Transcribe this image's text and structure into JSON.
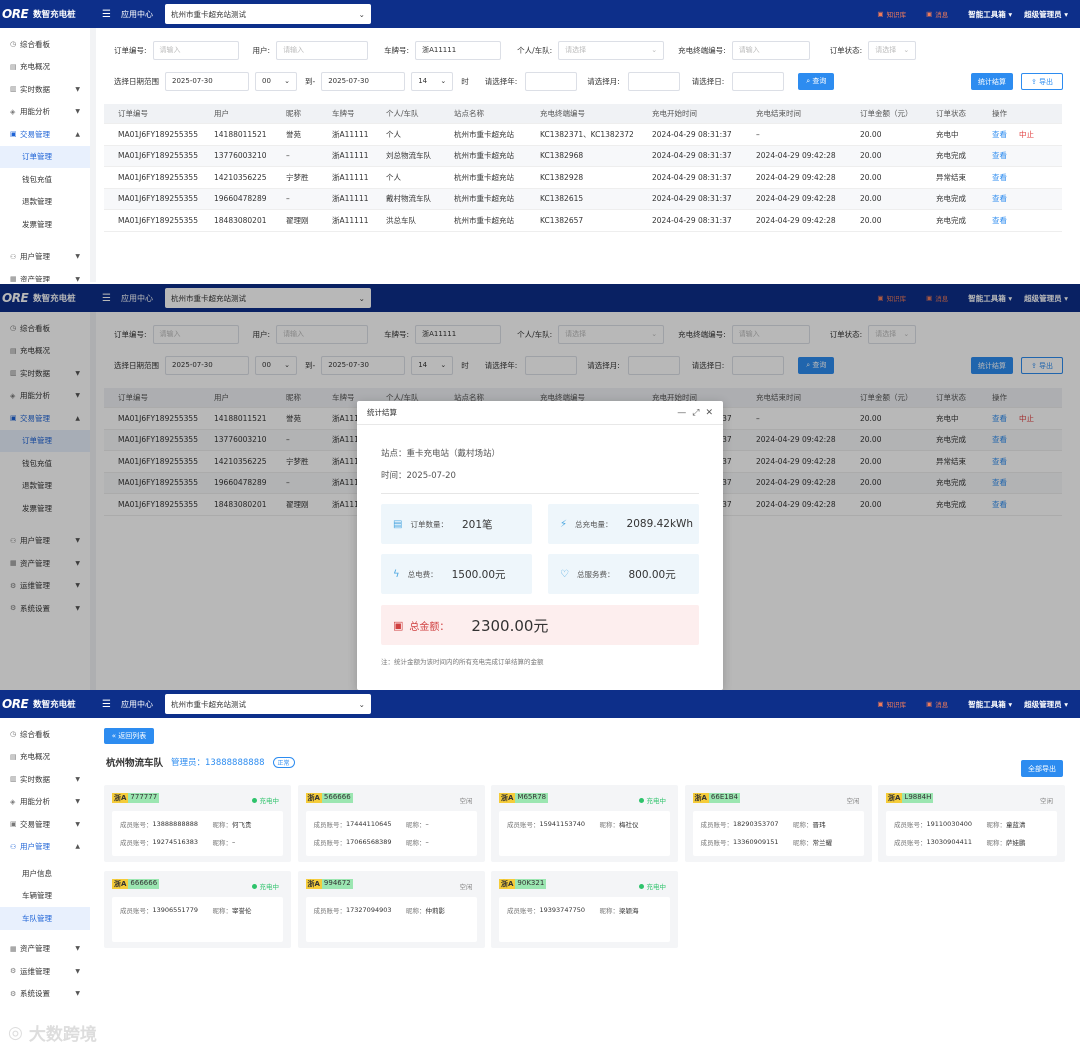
{
  "app": {
    "logo_mark": "ORE",
    "logo_name": "数智充电桩",
    "menu_icon": "hamburger-icon",
    "app_center": "应用中心",
    "station_select": "杭州市重卡超充站测试",
    "knowledge": "知识库",
    "message": "消息",
    "tools": "智能工具箱",
    "admin": "超级管理员"
  },
  "sidebar_common": [
    {
      "label": "综合看板",
      "icon": "dashboard-icon"
    },
    {
      "label": "充电概况",
      "icon": "charge-icon"
    },
    {
      "label": "实时数据",
      "icon": "data-icon"
    },
    {
      "label": "用能分析",
      "icon": "analysis-icon"
    }
  ],
  "s1": {
    "sidebar": {
      "trade": "交易管理",
      "subs": [
        "订单管理",
        "钱包充值",
        "退款管理",
        "发票管理"
      ],
      "user": "用户管理",
      "asset": "资产管理"
    }
  },
  "s2": {
    "sidebar": {
      "trade": "交易管理",
      "subs": [
        "订单管理",
        "钱包充值",
        "退款管理",
        "发票管理"
      ],
      "others": [
        "用户管理",
        "资产管理",
        "运维管理",
        "系统设置"
      ]
    }
  },
  "filters": {
    "order_no_label": "订单编号:",
    "order_no_ph": "请输入",
    "user_label": "用户:",
    "user_ph": "请输入",
    "plate_label": "车牌号:",
    "plate_value": "浙A11111",
    "team_label": "个人/车队:",
    "team_ph": "请选择",
    "terminal_label": "充电终端编号:",
    "terminal_ph": "请输入",
    "status_label": "订单状态:",
    "status_ph": "请选择",
    "date_label": "选择日期范围",
    "date_from": "2025-07-30",
    "hour_from": "00",
    "to_label": "到-",
    "date_to": "2025-07-30",
    "hour_to": "14",
    "hour_unit": "时",
    "year_label": "请选择年:",
    "month_label": "请选择月:",
    "day_label": "请选择日:",
    "query_btn": "查询",
    "stat_btn": "统计结算",
    "export_btn": "导出"
  },
  "table": {
    "headers": [
      "订单编号",
      "用户",
      "昵称",
      "车牌号",
      "个人/车队",
      "站点名称",
      "充电终端编号",
      "充电开始时间",
      "充电结束时间",
      "订单金额（元）",
      "订单状态",
      "操作"
    ],
    "rows": [
      [
        "MA01J6FY189255355",
        "14188011521",
        "誉苑",
        "浙A11111",
        "个人",
        "杭州市重卡超充站",
        "KC1382371、KC1382372",
        "2024-04-29 08:31:37",
        "–",
        "20.00",
        "充电中",
        "查看",
        "中止"
      ],
      [
        "MA01J6FY189255355",
        "13776003210",
        "–",
        "浙A11111",
        "刘总物流车队",
        "杭州市重卡超充站",
        "KC1382968",
        "2024-04-29 08:31:37",
        "2024-04-29 09:42:28",
        "20.00",
        "充电完成",
        "查看",
        ""
      ],
      [
        "MA01J6FY189255355",
        "14210356225",
        "宁梦胜",
        "浙A11111",
        "个人",
        "杭州市重卡超充站",
        "KC1382928",
        "2024-04-29 08:31:37",
        "2024-04-29 09:42:28",
        "20.00",
        "异常结束",
        "查看",
        ""
      ],
      [
        "MA01J6FY189255355",
        "19660478289",
        "–",
        "浙A11111",
        "戴村物流车队",
        "杭州市重卡超充站",
        "KC1382615",
        "2024-04-29 08:31:37",
        "2024-04-29 09:42:28",
        "20.00",
        "充电完成",
        "查看",
        ""
      ],
      [
        "MA01J6FY189255355",
        "18483080201",
        "翟理刚",
        "浙A11111",
        "洪总车队",
        "杭州市重卡超充站",
        "KC1382657",
        "2024-04-29 08:31:37",
        "2024-04-29 09:42:28",
        "20.00",
        "充电完成",
        "查看",
        ""
      ]
    ]
  },
  "modal": {
    "title": "统计结算",
    "station": "站点：重卡充电站（戴村场站）",
    "time": "时间：2025-07-20",
    "order_count_label": "订单数量：",
    "order_count": "201笔",
    "energy_label": "总充电量：",
    "energy": "2089.42kWh",
    "elec_fee_label": "总电费：",
    "elec_fee": "1500.00元",
    "service_fee_label": "总服务费：",
    "service_fee": "800.00元",
    "total_label": "总金额：",
    "total": "2300.00元",
    "note": "注：统计金额为该时间内的所有充电完成订单结算的金额"
  },
  "s3": {
    "sidebar": {
      "trade": "交易管理",
      "user": "用户管理",
      "subs": [
        "用户信息",
        "车辆管理",
        "车队管理"
      ],
      "others": [
        "资产管理",
        "运维管理",
        "系统设置"
      ]
    },
    "back_btn": "返回列表",
    "team_name": "杭州物流车队",
    "manager": "管理员：13888888888",
    "badge": "正常",
    "export_all": "全部导出",
    "cards": [
      {
        "prefix": "浙A",
        "plate": "777777",
        "status": "充电中",
        "charging": true,
        "members": [
          [
            "13888888888",
            "何飞贵"
          ],
          [
            "19274516383",
            "–"
          ]
        ]
      },
      {
        "prefix": "浙A",
        "plate": "566666",
        "status": "空闲",
        "charging": false,
        "members": [
          [
            "17444110645",
            "–"
          ],
          [
            "17066568389",
            "–"
          ]
        ]
      },
      {
        "prefix": "浙A",
        "plate": "M65R78",
        "status": "充电中",
        "charging": true,
        "members": [
          [
            "15941153740",
            "梅社仪"
          ]
        ]
      },
      {
        "prefix": "浙A",
        "plate": "66E1B4",
        "status": "空闲",
        "charging": false,
        "members": [
          [
            "18290353707",
            "晋玮"
          ],
          [
            "13360909151",
            "常兰耀"
          ]
        ]
      },
      {
        "prefix": "浙A",
        "plate": "L9884H",
        "status": "空闲",
        "charging": false,
        "members": [
          [
            "19110030400",
            "童蓝清"
          ],
          [
            "13030904411",
            "萨娃鹏"
          ]
        ]
      },
      {
        "prefix": "浙A",
        "plate": "666666",
        "status": "充电中",
        "charging": true,
        "members": [
          [
            "13906551779",
            "宰誉伦"
          ]
        ]
      },
      {
        "prefix": "浙A",
        "plate": "994672",
        "status": "空闲",
        "charging": false,
        "members": [
          [
            "17327094903",
            "仲莉影"
          ]
        ]
      },
      {
        "prefix": "浙A",
        "plate": "90K321",
        "status": "充电中",
        "charging": true,
        "members": [
          [
            "19393747750",
            "梁颖海"
          ]
        ]
      }
    ],
    "member_key": "成员账号：",
    "nick_key": "昵称："
  },
  "watermark": "大数跨境",
  "colors": {
    "topbar": "#0d2f8a",
    "accent": "#2d8cf0",
    "danger": "#e03c3c",
    "charging_dot": "#2ec36b"
  }
}
